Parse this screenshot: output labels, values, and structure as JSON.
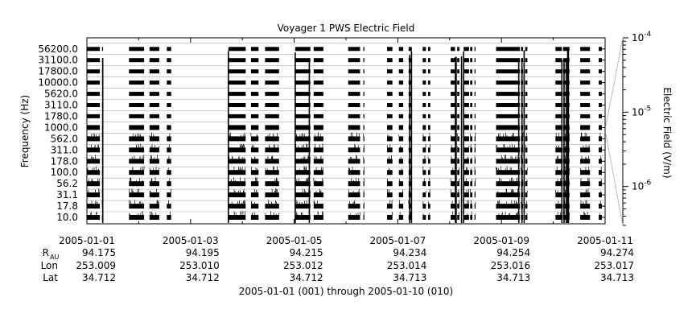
{
  "chart_data": {
    "type": "heatmap",
    "title": "Voyager 1 PWS Electric Field",
    "ylabel": "Frequency (Hz)",
    "colorbar_label": "Electric Field (V/m)",
    "colorbar_scale": "log",
    "colorbar_range": [
      3e-07,
      0.0001
    ],
    "colorbar_ticks": [
      {
        "base": "10",
        "exp": "-4",
        "value": 0.0001
      },
      {
        "base": "10",
        "exp": "-5",
        "value": 1e-05
      },
      {
        "base": "10",
        "exp": "-6",
        "value": 1e-06
      }
    ],
    "y_channels": [
      "10.0",
      "17.8",
      "31.1",
      "56.2",
      "100.0",
      "178.0",
      "311.0",
      "562.0",
      "1000.0",
      "1780.0",
      "3110.0",
      "5620.0",
      "10000.0",
      "17800.0",
      "31100.0",
      "56200.0"
    ],
    "x_range": [
      "2005-01-01",
      "2005-01-11"
    ],
    "x_ticks": [
      "2005-01-01",
      "2005-01-03",
      "2005-01-05",
      "2005-01-07",
      "2005-01-09",
      "2005-01-11"
    ],
    "x_minor_ticks": [
      "2005-01-02",
      "2005-01-04",
      "2005-01-06",
      "2005-01-08",
      "2005-01-10"
    ],
    "ephemeris": {
      "rows": [
        {
          "label": "R",
          "sub": "AU",
          "values": [
            "94.175",
            "94.195",
            "94.215",
            "94.234",
            "94.254",
            "94.274"
          ]
        },
        {
          "label": "Lon",
          "values": [
            "253.009",
            "253.010",
            "253.012",
            "253.014",
            "253.016",
            "253.017"
          ]
        },
        {
          "label": "Lat",
          "values": [
            "34.712",
            "34.712",
            "34.712",
            "34.713",
            "34.713",
            "34.713"
          ]
        }
      ]
    },
    "xlabel": "2005-01-01 (001) through 2005-01-10 (010)",
    "data_intervals": [
      [
        "2005-01-01T00:00",
        "2005-01-01T06:00"
      ],
      [
        "2005-01-01T07:00",
        "2005-01-01T07:30"
      ],
      [
        "2005-01-01T19:30",
        "2005-01-02T02:30"
      ],
      [
        "2005-01-02T05:00",
        "2005-01-02T09:30"
      ],
      [
        "2005-01-02T13:00",
        "2005-01-02T15:00"
      ],
      [
        "2005-01-03T17:30",
        "2005-01-04T01:30"
      ],
      [
        "2005-01-04T04:00",
        "2005-01-04T07:30"
      ],
      [
        "2005-01-04T10:30",
        "2005-01-04T17:00"
      ],
      [
        "2005-01-05T00:30",
        "2005-01-05T07:30"
      ],
      [
        "2005-01-05T09:00",
        "2005-01-05T13:30"
      ],
      [
        "2005-01-06T01:00",
        "2005-01-06T06:30"
      ],
      [
        "2005-01-06T08:00",
        "2005-01-06T08:30"
      ],
      [
        "2005-01-06T19:00",
        "2005-01-06T21:30"
      ],
      [
        "2005-01-07T00:30",
        "2005-01-07T02:30"
      ],
      [
        "2005-01-07T05:00",
        "2005-01-07T06:30"
      ],
      [
        "2005-01-07T11:30",
        "2005-01-07T13:00"
      ],
      [
        "2005-01-07T14:00",
        "2005-01-07T15:00"
      ],
      [
        "2005-01-08T00:30",
        "2005-01-08T02:30"
      ],
      [
        "2005-01-08T03:30",
        "2005-01-08T04:30"
      ],
      [
        "2005-01-08T06:30",
        "2005-01-08T09:00"
      ],
      [
        "2005-01-08T09:30",
        "2005-01-08T10:30"
      ],
      [
        "2005-01-08T11:30",
        "2005-01-08T12:00"
      ],
      [
        "2005-01-08T21:30",
        "2005-01-09T08:30"
      ],
      [
        "2005-01-09T09:00",
        "2005-01-09T10:00"
      ],
      [
        "2005-01-09T11:00",
        "2005-01-09T12:00"
      ],
      [
        "2005-01-10T01:00",
        "2005-01-10T04:00"
      ],
      [
        "2005-01-10T04:30",
        "2005-01-10T06:30"
      ],
      [
        "2005-01-10T06:30",
        "2005-01-10T07:30"
      ],
      [
        "2005-01-10T12:30",
        "2005-01-10T17:00"
      ],
      [
        "2005-01-10T21:00",
        "2005-01-10T22:30"
      ]
    ],
    "intense_bursts": [
      "2005-01-01T07:20",
      "2005-01-03T17:30",
      "2005-01-05T00:30",
      "2005-01-05T07:00",
      "2005-01-07T05:30",
      "2005-01-07T06:20",
      "2005-01-08T02:40",
      "2005-01-08T03:00",
      "2005-01-08T05:30",
      "2005-01-08T06:30",
      "2005-01-09T08:00",
      "2005-01-09T09:30",
      "2005-01-09T10:30",
      "2005-01-10T04:00",
      "2005-01-10T05:00",
      "2005-01-10T06:00",
      "2005-01-10T06:40",
      "2005-01-10T07:00"
    ]
  }
}
